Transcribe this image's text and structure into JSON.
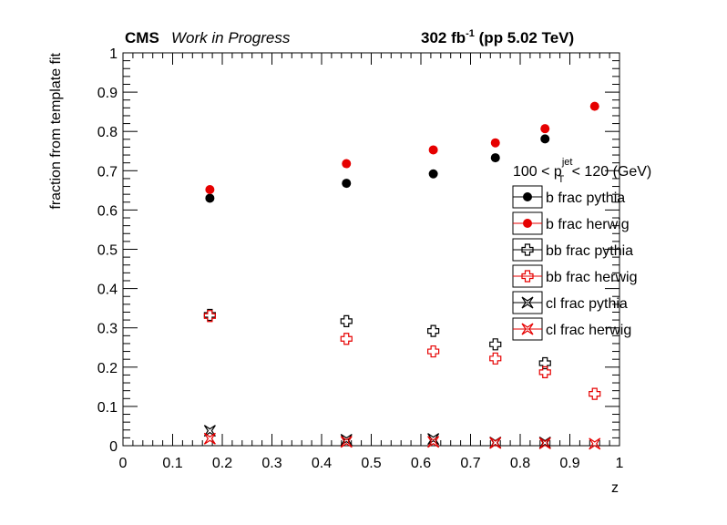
{
  "header": {
    "cms": "CMS",
    "wip": "Work in Progress",
    "lumi_main": "302 fb",
    "lumi_sup": "-1",
    "lumi_tail": " (pp 5.02 TeV)"
  },
  "chart_data": {
    "type": "scatter",
    "xlabel": "z",
    "ylabel": "fraction from template fit",
    "xlim": [
      0,
      1
    ],
    "ylim": [
      0,
      1
    ],
    "x_ticks": [
      "0",
      "0.1",
      "0.2",
      "0.3",
      "0.4",
      "0.5",
      "0.6",
      "0.7",
      "0.8",
      "0.9",
      "1"
    ],
    "y_ticks": [
      "0",
      "0.1",
      "0.2",
      "0.3",
      "0.4",
      "0.5",
      "0.6",
      "0.7",
      "0.8",
      "0.9",
      "1"
    ],
    "grid": false,
    "legend_title_pre": "100 < p",
    "legend_title_sup": "jet",
    "legend_title_sub": "T",
    "legend_title_post": " < 120 (GeV)",
    "legend_position": "right",
    "series": [
      {
        "name": "b frac pythia",
        "color": "#000000",
        "marker": "circle",
        "x": [
          0.175,
          0.45,
          0.625,
          0.75,
          0.85
        ],
        "y": [
          0.63,
          0.668,
          0.692,
          0.733,
          0.781
        ]
      },
      {
        "name": "b frac herwig",
        "color": "#e60000",
        "marker": "circle",
        "x": [
          0.175,
          0.45,
          0.625,
          0.75,
          0.85,
          0.95
        ],
        "y": [
          0.652,
          0.718,
          0.753,
          0.771,
          0.807,
          0.864
        ]
      },
      {
        "name": "bb frac pythia",
        "color": "#000000",
        "marker": "open-cross",
        "x": [
          0.175,
          0.45,
          0.625,
          0.75,
          0.85
        ],
        "y": [
          0.333,
          0.317,
          0.292,
          0.258,
          0.21
        ]
      },
      {
        "name": "bb frac herwig",
        "color": "#e60000",
        "marker": "open-cross",
        "x": [
          0.175,
          0.45,
          0.625,
          0.75,
          0.85,
          0.95
        ],
        "y": [
          0.33,
          0.272,
          0.24,
          0.222,
          0.187,
          0.132
        ]
      },
      {
        "name": "cl frac pythia",
        "color": "#000000",
        "marker": "open-star",
        "x": [
          0.175,
          0.45,
          0.625,
          0.75,
          0.85
        ],
        "y": [
          0.038,
          0.015,
          0.017,
          0.008,
          0.008
        ]
      },
      {
        "name": "cl frac herwig",
        "color": "#e60000",
        "marker": "open-star",
        "x": [
          0.175,
          0.45,
          0.625,
          0.75,
          0.85,
          0.95
        ],
        "y": [
          0.018,
          0.01,
          0.01,
          0.007,
          0.006,
          0.005
        ]
      }
    ]
  }
}
